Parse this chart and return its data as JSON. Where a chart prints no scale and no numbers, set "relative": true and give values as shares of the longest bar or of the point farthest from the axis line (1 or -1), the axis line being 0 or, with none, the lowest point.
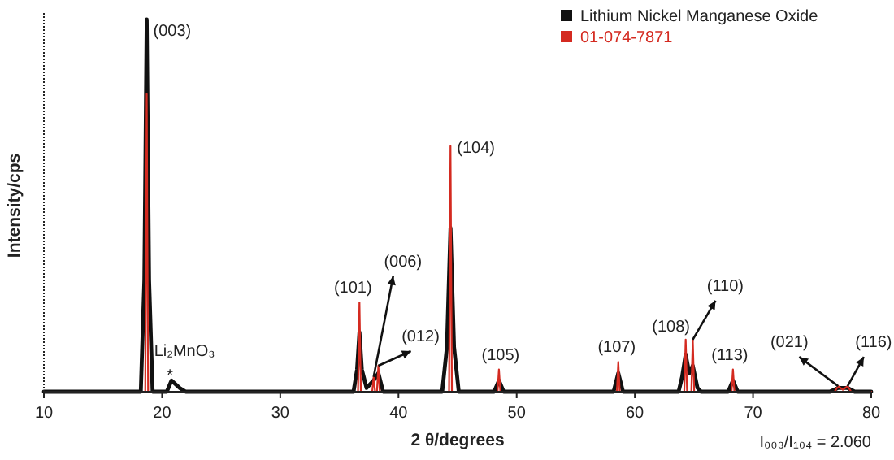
{
  "chart_data": {
    "type": "line",
    "relative": true,
    "xlabel": "2 θ/degrees",
    "ylabel": "Intensity/cps",
    "xlim": [
      10,
      80
    ],
    "xticks": [
      10,
      20,
      30,
      40,
      50,
      60,
      70,
      80
    ],
    "legend": "top right",
    "grid": false,
    "marker": "none",
    "line_style": "solid",
    "series": [
      {
        "name": "Lithium Nickel Manganese Oxide",
        "color": "#111111",
        "x": [
          10,
          18.2,
          18.5,
          18.7,
          18.9,
          19.2,
          20.4,
          20.8,
          21.5,
          22,
          36.2,
          36.5,
          36.7,
          36.9,
          37.3,
          37.9,
          38.3,
          38.7,
          43.7,
          44.1,
          44.4,
          44.7,
          45.1,
          48.1,
          48.5,
          48.9,
          58.2,
          58.6,
          59,
          63.7,
          64.0,
          64.3,
          64.6,
          64.9,
          65.3,
          65.6,
          67.9,
          68.3,
          68.7,
          76.5,
          77.2,
          78,
          78.6,
          80
        ],
        "values": [
          0,
          0,
          0.3,
          1,
          0.3,
          0,
          0,
          0.03,
          0.01,
          0,
          0,
          0.06,
          0.16,
          0.06,
          0.01,
          0.03,
          0.05,
          0,
          0,
          0.12,
          0.44,
          0.12,
          0,
          0,
          0.03,
          0,
          0,
          0.05,
          0,
          0,
          0.04,
          0.1,
          0.05,
          0.07,
          0.01,
          0,
          0,
          0.03,
          0,
          0,
          0.01,
          0.01,
          0,
          0
        ]
      },
      {
        "name": "01-074-7871",
        "color": "#d42a20",
        "x": [
          10,
          18.58,
          18.7,
          18.82,
          36.58,
          36.7,
          36.82,
          37.78,
          37.9,
          38.02,
          38.18,
          38.3,
          38.42,
          44.28,
          44.4,
          44.52,
          48.38,
          48.5,
          48.62,
          58.48,
          58.6,
          58.72,
          64.18,
          64.3,
          64.42,
          64.78,
          64.9,
          65.02,
          68.18,
          68.3,
          68.42,
          76.9,
          77.2,
          77.6,
          78,
          78.3,
          80
        ],
        "values": [
          0,
          0,
          0.8,
          0,
          0,
          0.24,
          0,
          0,
          0.04,
          0,
          0,
          0.07,
          0,
          0,
          0.66,
          0,
          0,
          0.06,
          0,
          0,
          0.08,
          0,
          0,
          0.14,
          0,
          0,
          0.14,
          0,
          0,
          0.06,
          0,
          0,
          0.015,
          0.005,
          0.015,
          0,
          0
        ]
      }
    ],
    "annotations": [
      {
        "text": "(003)",
        "x": 18.7,
        "y": 1
      },
      {
        "text": "Li₂MnO₃",
        "x": 20.8,
        "y": 0.03
      },
      {
        "text": "*",
        "x": 20.8,
        "y": 0.03
      },
      {
        "text": "(101)",
        "x": 36.7,
        "y": 0.24
      },
      {
        "text": "(006)",
        "x": 37.9,
        "y": 0.04
      },
      {
        "text": "(012)",
        "x": 38.3,
        "y": 0.07
      },
      {
        "text": "(104)",
        "x": 44.4,
        "y": 0.66
      },
      {
        "text": "(105)",
        "x": 48.5,
        "y": 0.06
      },
      {
        "text": "(107)",
        "x": 58.6,
        "y": 0.08
      },
      {
        "text": "(108)",
        "x": 64.3,
        "y": 0.14
      },
      {
        "text": "(110)",
        "x": 64.9,
        "y": 0.14
      },
      {
        "text": "(113)",
        "x": 68.3,
        "y": 0.06
      },
      {
        "text": "(021)",
        "x": 77.2,
        "y": 0.015
      },
      {
        "text": "(116)",
        "x": 78,
        "y": 0.015
      },
      "I₀₀₃/I₁₀₄ = 2.060"
    ]
  }
}
